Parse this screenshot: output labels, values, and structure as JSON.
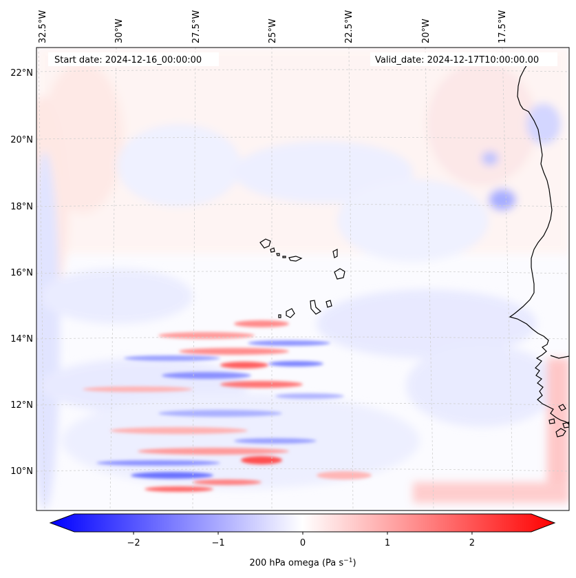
{
  "map": {
    "start_date": "Start date: 2024-12-16_00:00:00",
    "valid_date": "Valid_date: 2024-12-17T10:00:00.00",
    "longitude_labels": [
      {
        "lon": -32.5,
        "label": "32.5°W"
      },
      {
        "lon": -30.0,
        "label": "30°W"
      },
      {
        "lon": -27.5,
        "label": "27.5°W"
      },
      {
        "lon": -25.0,
        "label": "25°W"
      },
      {
        "lon": -22.5,
        "label": "22.5°W"
      },
      {
        "lon": -20.0,
        "label": "20°W"
      },
      {
        "lon": -17.5,
        "label": "17.5°W"
      }
    ],
    "latitude_labels": [
      {
        "lat": 22,
        "label": "22°N"
      },
      {
        "lat": 20,
        "label": "20°N"
      },
      {
        "lat": 18,
        "label": "18°N"
      },
      {
        "lat": 16,
        "label": "16°N"
      },
      {
        "lat": 14,
        "label": "14°N"
      },
      {
        "lat": 12,
        "label": "12°N"
      },
      {
        "lat": 10,
        "label": "10°N"
      }
    ],
    "colorbar": {
      "label_main": "200 hPa omega (Pa s",
      "label_sup": "−1",
      "label_end": ")",
      "vmin": -2.7,
      "vmax": 2.7,
      "ticks": [
        {
          "value": -2,
          "label": "−2"
        },
        {
          "value": -1,
          "label": "−1"
        },
        {
          "value": 0,
          "label": "0"
        },
        {
          "value": 1,
          "label": "1"
        },
        {
          "value": 2,
          "label": "2"
        }
      ],
      "colors": {
        "low": "#0000ff",
        "mid": "#ffffff",
        "high": "#ff0000"
      }
    }
  }
}
